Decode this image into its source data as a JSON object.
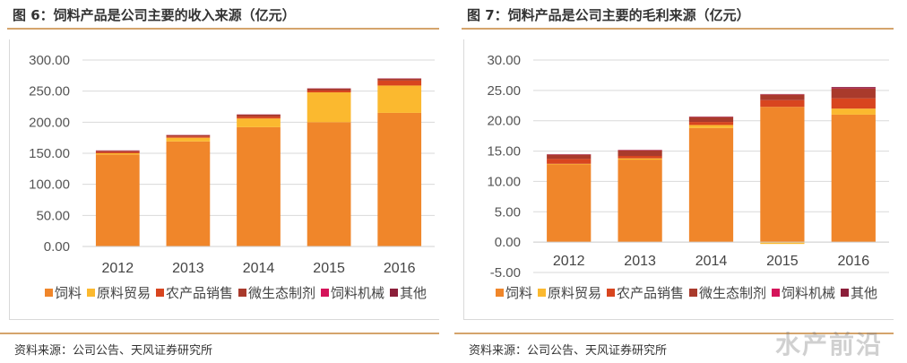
{
  "left": {
    "title": "图 6：饲料产品是公司主要的收入来源（亿元）",
    "source": "资料来源：公司公告、天风证券研究所"
  },
  "right": {
    "title": "图 7：饲料产品是公司主要的毛利来源（亿元）",
    "source": "资料来源：公司公告、天风证券研究所"
  },
  "watermark": "水产前沿",
  "chart_data": [
    {
      "type": "bar",
      "stacked": true,
      "title": "图 6：饲料产品是公司主要的收入来源（亿元）",
      "xlabel": "",
      "ylabel": "",
      "categories": [
        "2012",
        "2013",
        "2014",
        "2015",
        "2016"
      ],
      "ylim": [
        0,
        300
      ],
      "yticks": [
        0,
        50,
        100,
        150,
        200,
        250,
        300
      ],
      "ytick_labels": [
        "0.00",
        "50.00",
        "100.00",
        "150.00",
        "200.00",
        "250.00",
        "300.00"
      ],
      "grid": true,
      "legend_position": "bottom",
      "series": [
        {
          "name": "饲料",
          "color": "#f0862a",
          "values": [
            148,
            169,
            192,
            200,
            215
          ]
        },
        {
          "name": "原料贸易",
          "color": "#fbb92f",
          "values": [
            2,
            6,
            14,
            48,
            44
          ]
        },
        {
          "name": "农产品销售",
          "color": "#d8451f",
          "values": [
            2,
            2,
            3,
            3,
            8
          ]
        },
        {
          "name": "微生态制剂",
          "color": "#a93a2c",
          "values": [
            2,
            2,
            3,
            3,
            3
          ]
        },
        {
          "name": "饲料机械",
          "color": "#d4145a",
          "values": [
            0.3,
            0.3,
            0.3,
            0.3,
            0.3
          ]
        },
        {
          "name": "其他",
          "color": "#8b1f3a",
          "values": [
            0.3,
            0.3,
            0.3,
            0.3,
            0.3
          ]
        }
      ]
    },
    {
      "type": "bar",
      "stacked": true,
      "title": "图 7：饲料产品是公司主要的毛利来源（亿元）",
      "xlabel": "",
      "ylabel": "",
      "categories": [
        "2012",
        "2013",
        "2014",
        "2015",
        "2016"
      ],
      "ylim": [
        -5,
        30
      ],
      "yticks": [
        -5,
        0,
        5,
        10,
        15,
        20,
        25,
        30
      ],
      "ytick_labels": [
        "-5.00",
        "0.00",
        "5.00",
        "10.00",
        "15.00",
        "20.00",
        "25.00",
        "30.00"
      ],
      "grid": true,
      "legend_position": "bottom",
      "series": [
        {
          "name": "饲料",
          "color": "#f0862a",
          "values": [
            12.8,
            13.6,
            18.8,
            22.3,
            21.0
          ]
        },
        {
          "name": "原料贸易",
          "color": "#fbb92f",
          "values": [
            0.1,
            0.2,
            0.5,
            -0.3,
            1.0
          ]
        },
        {
          "name": "农产品销售",
          "color": "#d8451f",
          "values": [
            0.8,
            0.4,
            0.5,
            1.1,
            1.7
          ]
        },
        {
          "name": "微生态制剂",
          "color": "#a93a2c",
          "values": [
            0.7,
            0.9,
            0.8,
            0.9,
            1.6
          ]
        },
        {
          "name": "饲料机械",
          "color": "#d4145a",
          "values": [
            0.05,
            0.05,
            0.05,
            0.05,
            0.05
          ]
        },
        {
          "name": "其他",
          "color": "#8b1f3a",
          "values": [
            0.05,
            0.05,
            0.05,
            0.05,
            0.2
          ]
        }
      ]
    }
  ]
}
